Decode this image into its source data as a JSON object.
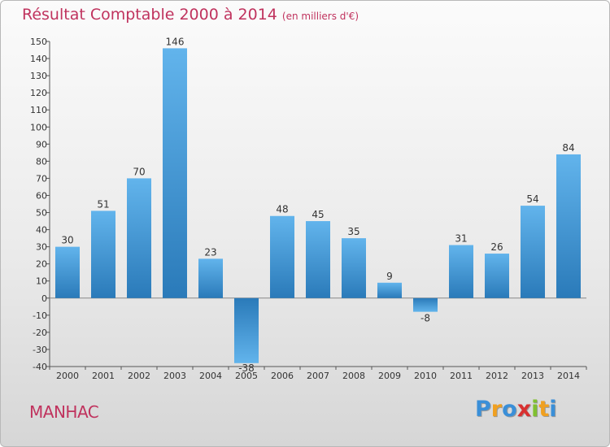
{
  "chart_data": {
    "type": "bar",
    "title": "Résultat Comptable 2000 à 2014",
    "subtitle": "(en milliers d'€)",
    "categories": [
      "2000",
      "2001",
      "2002",
      "2003",
      "2004",
      "2005",
      "2006",
      "2007",
      "2008",
      "2009",
      "2010",
      "2011",
      "2012",
      "2013",
      "2014"
    ],
    "values": [
      30,
      51,
      70,
      146,
      23,
      -38,
      48,
      45,
      35,
      9,
      -8,
      31,
      26,
      54,
      84
    ],
    "yticks": [
      -40,
      -30,
      -20,
      -10,
      0,
      10,
      20,
      30,
      40,
      50,
      60,
      70,
      80,
      90,
      100,
      110,
      120,
      130,
      140,
      150
    ],
    "ylim": [
      -40,
      150
    ],
    "xlabel": "",
    "ylabel": "",
    "grid": false,
    "colors": {
      "bar_light": "#5aaee8",
      "bar_dark": "#2a78b8",
      "title": "#c0335e"
    }
  },
  "footer": {
    "commune": "MANHAC",
    "brand_letters": [
      "P",
      "r",
      "o",
      "x",
      "i",
      "t",
      "i"
    ],
    "brand_colors": [
      "#3a8fd8",
      "#f0a020",
      "#3a8fd8",
      "#d83030",
      "#80c030",
      "#f0a020",
      "#3a8fd8"
    ]
  }
}
